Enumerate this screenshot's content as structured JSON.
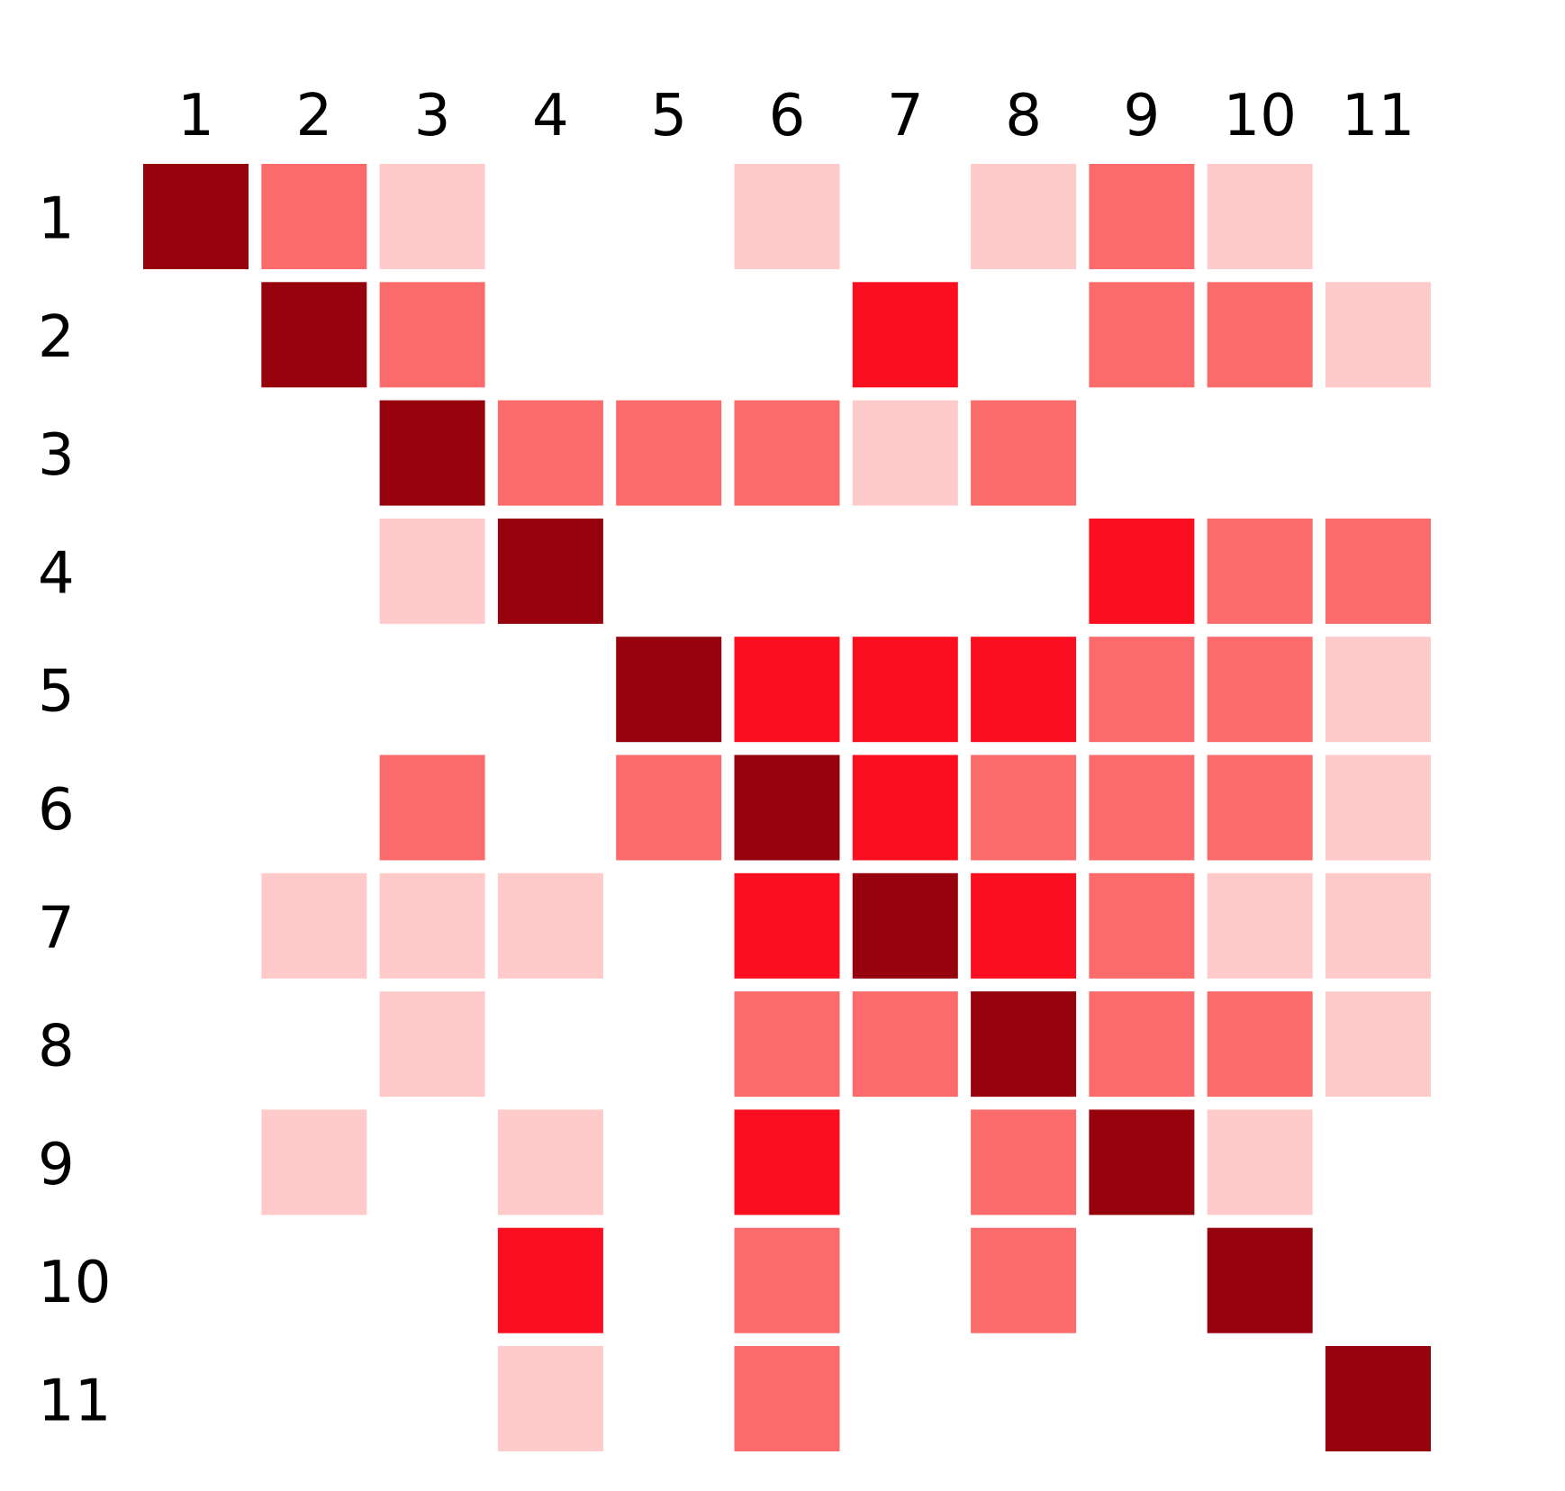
{
  "chart_data": {
    "type": "heatmap",
    "title": "",
    "xlabel": "",
    "ylabel": "",
    "x_categories": [
      "1",
      "2",
      "3",
      "4",
      "5",
      "6",
      "7",
      "8",
      "9",
      "10",
      "11"
    ],
    "y_categories": [
      "1",
      "2",
      "3",
      "4",
      "5",
      "6",
      "7",
      "8",
      "9",
      "10",
      "11"
    ],
    "x_axis_position": "top",
    "grid": false,
    "legend": "none",
    "levels": {
      "0": "#ffffff",
      "1": "#fecaca",
      "2": "#fb6b6b",
      "3": "#fb0e1f",
      "4": "#96030c"
    },
    "values": [
      [
        4,
        2,
        1,
        0,
        0,
        1,
        0,
        1,
        2,
        1,
        0
      ],
      [
        0,
        4,
        2,
        0,
        0,
        0,
        3,
        0,
        2,
        2,
        1
      ],
      [
        0,
        0,
        4,
        2,
        2,
        2,
        1,
        2,
        0,
        0,
        0
      ],
      [
        0,
        0,
        1,
        4,
        0,
        0,
        0,
        0,
        3,
        2,
        2
      ],
      [
        0,
        0,
        0,
        0,
        4,
        3,
        3,
        3,
        2,
        2,
        1
      ],
      [
        0,
        0,
        2,
        0,
        2,
        4,
        3,
        2,
        2,
        2,
        1
      ],
      [
        0,
        1,
        1,
        1,
        0,
        3,
        4,
        3,
        2,
        1,
        1
      ],
      [
        0,
        0,
        1,
        0,
        0,
        2,
        2,
        4,
        2,
        2,
        1
      ],
      [
        0,
        1,
        0,
        1,
        0,
        3,
        0,
        2,
        4,
        1,
        0
      ],
      [
        0,
        0,
        0,
        3,
        0,
        2,
        0,
        2,
        0,
        4,
        0
      ],
      [
        0,
        0,
        0,
        1,
        0,
        2,
        0,
        0,
        0,
        0,
        4
      ]
    ]
  }
}
